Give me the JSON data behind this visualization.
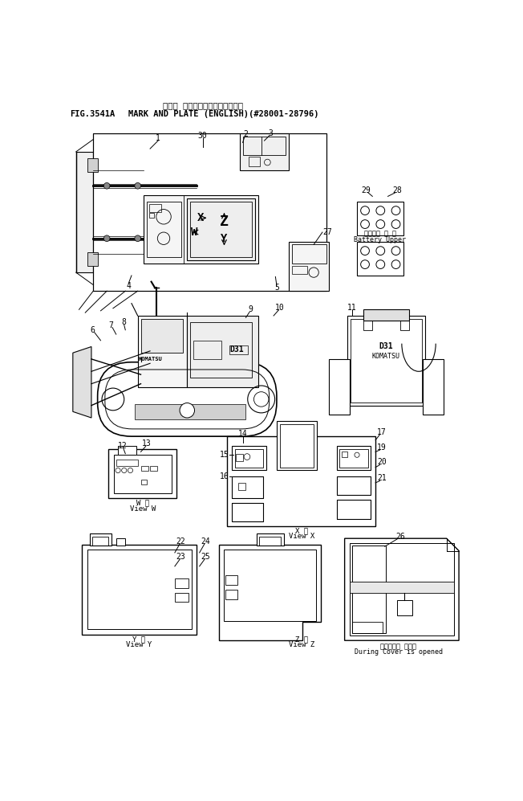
{
  "title_jp": "マーク オヨビプレート（エイゴ）",
  "title_fig": "FIG.3541A",
  "title_en": "MARK AND PLATE (ENGLISH)(#28001-28796)",
  "bg_color": "#ffffff",
  "line_color": "#000000",
  "fig_width": 6.52,
  "fig_height": 9.97,
  "dpi": 100
}
